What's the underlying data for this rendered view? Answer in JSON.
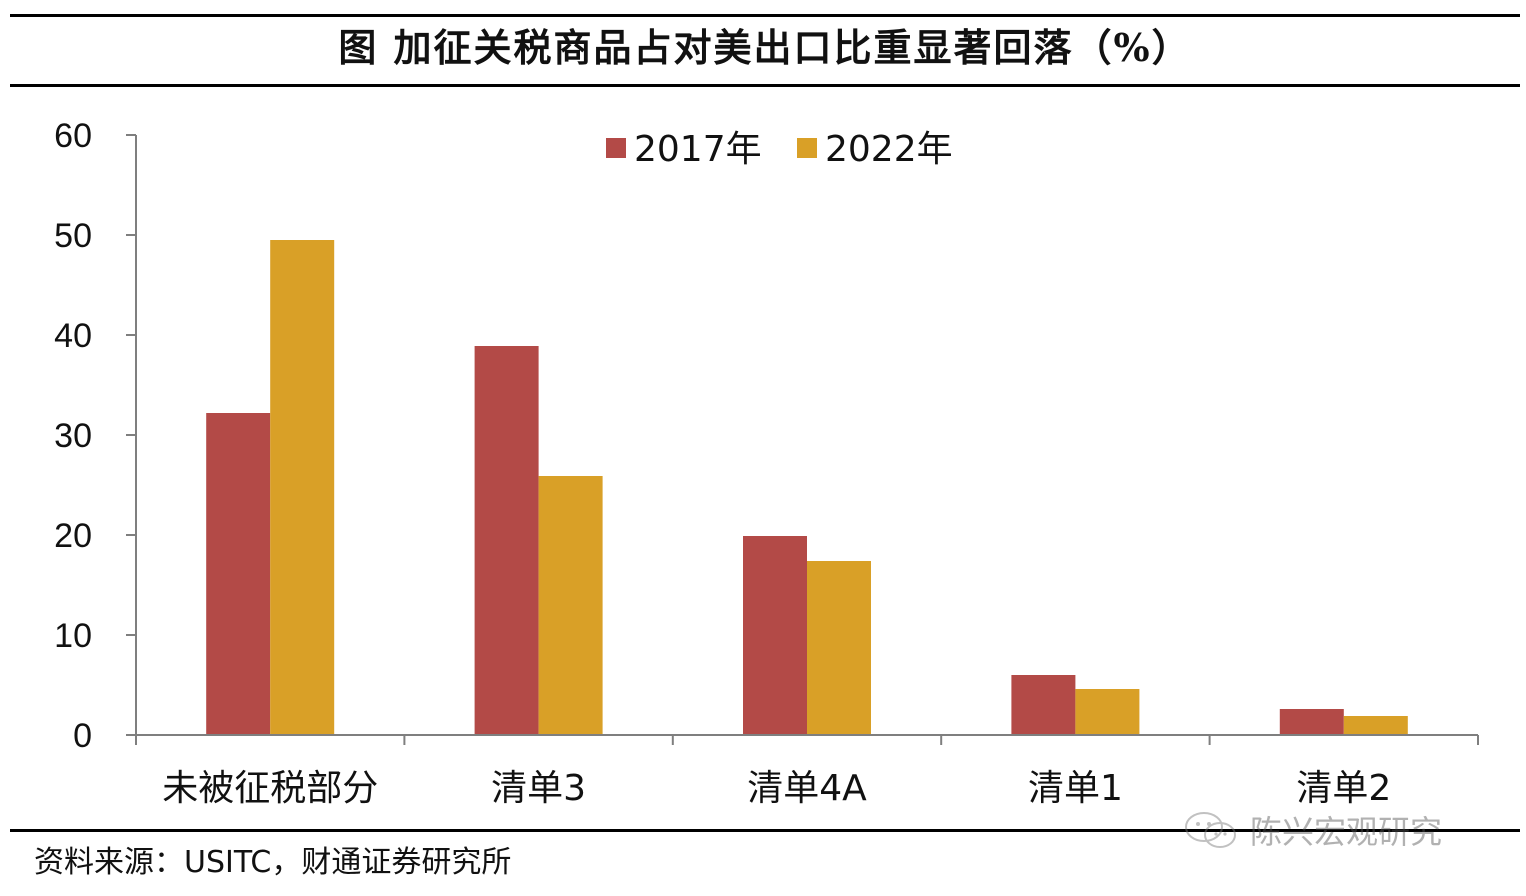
{
  "header": {
    "title": "图 加征关税商品占对美出口比重显著回落（%）"
  },
  "footer": {
    "source": "资料来源：USITC，财通证券研究所"
  },
  "watermark": {
    "text": "陈兴宏观研究",
    "icon": "wechat-icon"
  },
  "colors": {
    "series_2017": "#B34A47",
    "series_2022": "#D9A027",
    "axis": "#7f7f7f"
  },
  "chart_data": {
    "type": "bar",
    "title": "图 加征关税商品占对美出口比重显著回落（%）",
    "categories": [
      "未被征税部分",
      "清单3",
      "清单4A",
      "清单1",
      "清单2"
    ],
    "series": [
      {
        "name": "2017年",
        "values": [
          32.2,
          38.9,
          19.9,
          6.0,
          2.6
        ]
      },
      {
        "name": "2022年",
        "values": [
          49.5,
          25.9,
          17.4,
          4.6,
          1.9
        ]
      }
    ],
    "ylim": [
      0,
      60
    ],
    "yticks": [
      0,
      10,
      20,
      30,
      40,
      50,
      60
    ],
    "xlabel": "",
    "ylabel": "",
    "legend": "top-center",
    "grid": false
  }
}
